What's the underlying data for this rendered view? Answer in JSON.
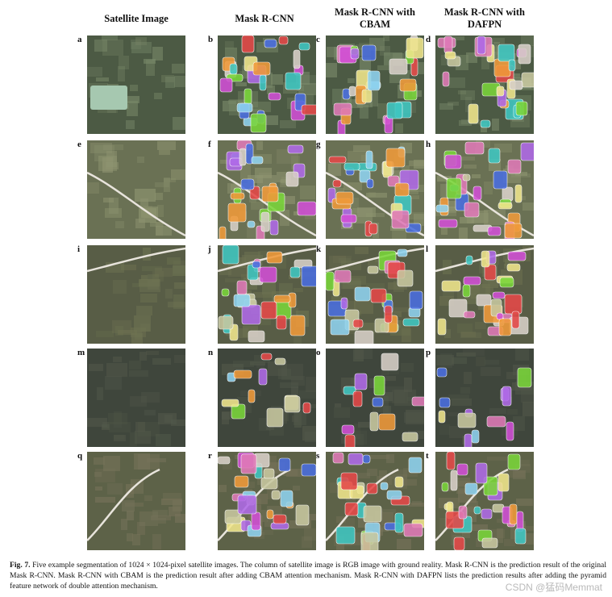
{
  "columns": [
    "Satellite Image",
    "Mask R-CNN",
    "Mask R-CNN with CBAM",
    "Mask R-CNN with DAFPN"
  ],
  "panel_labels": [
    "a",
    "b",
    "c",
    "d",
    "e",
    "f",
    "g",
    "h",
    "i",
    "j",
    "k",
    "l",
    "m",
    "n",
    "o",
    "p",
    "q",
    "r",
    "s",
    "t"
  ],
  "caption": {
    "label": "Fig. 7.",
    "text": " Five example segmentation of 1024 × 1024-pixel satellite images. The column of satellite image is RGB image with ground reality. Mask R-CNN is the prediction result of the original Mask R-CNN. Mask R-CNN with CBAM is the prediction result after adding CBAM attention mechanism. Mask R-CNN with DAFPN lists the prediction results after adding the pyramid feature network of double attention mechanism."
  },
  "watermark": "CSDN @猛码Memmat",
  "colors": {
    "background": "#ffffff",
    "segment_palette": [
      "#d24fd6",
      "#3fc7c2",
      "#f0e68c",
      "#e54848",
      "#7ad63a",
      "#4a6ee0",
      "#f09a3a",
      "#b06ae8",
      "#8fd3f0",
      "#e07ab8",
      "#c8c8a0",
      "#d8d0c8"
    ]
  }
}
